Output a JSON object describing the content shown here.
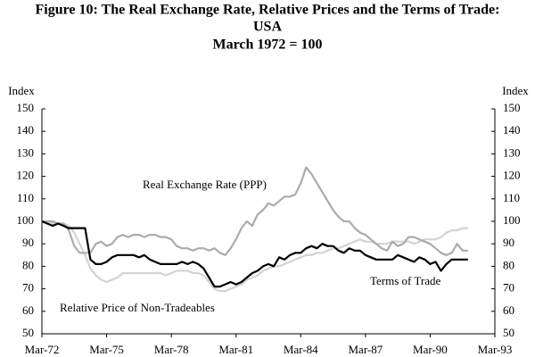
{
  "chart_data": {
    "type": "line",
    "title": [
      "Figure 10: The Real Exchange Rate, Relative Prices and the Terms of Trade:",
      "USA",
      "March 1972 = 100"
    ],
    "ylabel": "Index",
    "y2label": "Index",
    "categories": [
      "Mar-72",
      null,
      null,
      null,
      null,
      null,
      null,
      null,
      null,
      null,
      null,
      null,
      "Mar-75",
      null,
      null,
      null,
      null,
      null,
      null,
      null,
      null,
      null,
      null,
      null,
      "Mar-78",
      null,
      null,
      null,
      null,
      null,
      null,
      null,
      null,
      null,
      null,
      null,
      "Mar-81",
      null,
      null,
      null,
      null,
      null,
      null,
      null,
      null,
      null,
      null,
      null,
      "Mar-84",
      null,
      null,
      null,
      null,
      null,
      null,
      null,
      null,
      null,
      null,
      null,
      "Mar-87",
      null,
      null,
      null,
      null,
      null,
      null,
      null,
      null,
      null,
      null,
      null,
      "Mar-90",
      null,
      null,
      null,
      null,
      null,
      null,
      null,
      null,
      null,
      null,
      null,
      "Mar-93"
    ],
    "series": [
      {
        "name": "Real Exchange Rate (PPP)",
        "color": "#ababab",
        "values": [
          100,
          100,
          100,
          99,
          99,
          96,
          89,
          86,
          86,
          86,
          90,
          91,
          89,
          90,
          93,
          94,
          93,
          94,
          94,
          93,
          94,
          94,
          93,
          93,
          92,
          89,
          88,
          88,
          87,
          88,
          88,
          87,
          88,
          86,
          85,
          88,
          92,
          97,
          100,
          98,
          103,
          105,
          108,
          107,
          109,
          111,
          111,
          112,
          117,
          124,
          121,
          117,
          113,
          109,
          105,
          102,
          100,
          100,
          97,
          95,
          94,
          92,
          90,
          88,
          87,
          91,
          89,
          90,
          93,
          93,
          92,
          91,
          90,
          88,
          86,
          85,
          86,
          90,
          87,
          87,
          null,
          null,
          null,
          null,
          null
        ]
      },
      {
        "name": "Terms of Trade",
        "color": "#000000",
        "values": [
          100,
          99,
          98,
          99,
          98,
          97,
          97,
          97,
          97,
          83,
          81,
          81,
          82,
          84,
          85,
          85,
          85,
          85,
          84,
          85,
          83,
          82,
          81,
          81,
          81,
          81,
          82,
          81,
          82,
          81,
          79,
          75,
          71,
          71,
          72,
          73,
          72,
          73,
          75,
          77,
          78,
          80,
          81,
          80,
          84,
          83,
          85,
          86,
          86,
          88,
          89,
          88,
          90,
          89,
          89,
          87,
          86,
          88,
          87,
          87,
          85,
          84,
          83,
          83,
          83,
          83,
          85,
          84,
          83,
          82,
          84,
          83,
          81,
          82,
          78,
          81,
          83,
          83,
          83,
          83,
          null,
          null,
          null,
          null,
          null
        ]
      },
      {
        "name": "Relative Price of Non-Tradeables",
        "color": "#d4d4d4",
        "values": [
          100,
          100,
          99,
          99,
          99,
          98,
          95,
          90,
          85,
          79,
          76,
          74,
          73,
          74,
          75,
          77,
          77,
          77,
          77,
          77,
          77,
          77,
          77,
          76,
          77,
          78,
          78,
          78,
          77,
          77,
          76,
          73,
          70,
          69,
          69,
          70,
          71,
          72,
          74,
          75,
          76,
          78,
          79,
          80,
          80,
          81,
          82,
          83,
          84,
          85,
          85,
          86,
          86,
          87,
          88,
          88,
          89,
          90,
          91,
          92,
          91,
          91,
          90,
          90,
          90,
          91,
          91,
          91,
          91,
          90,
          91,
          92,
          92,
          92,
          93,
          95,
          96,
          96,
          97,
          97,
          null,
          null,
          null,
          null,
          null
        ]
      }
    ],
    "ylim": [
      50,
      150
    ],
    "yticks": [
      50,
      60,
      70,
      80,
      90,
      100,
      110,
      120,
      130,
      140,
      150
    ],
    "y2lim": [
      50,
      150
    ],
    "y2ticks": [
      50,
      60,
      70,
      80,
      90,
      100,
      110,
      120,
      130,
      140,
      150
    ]
  }
}
